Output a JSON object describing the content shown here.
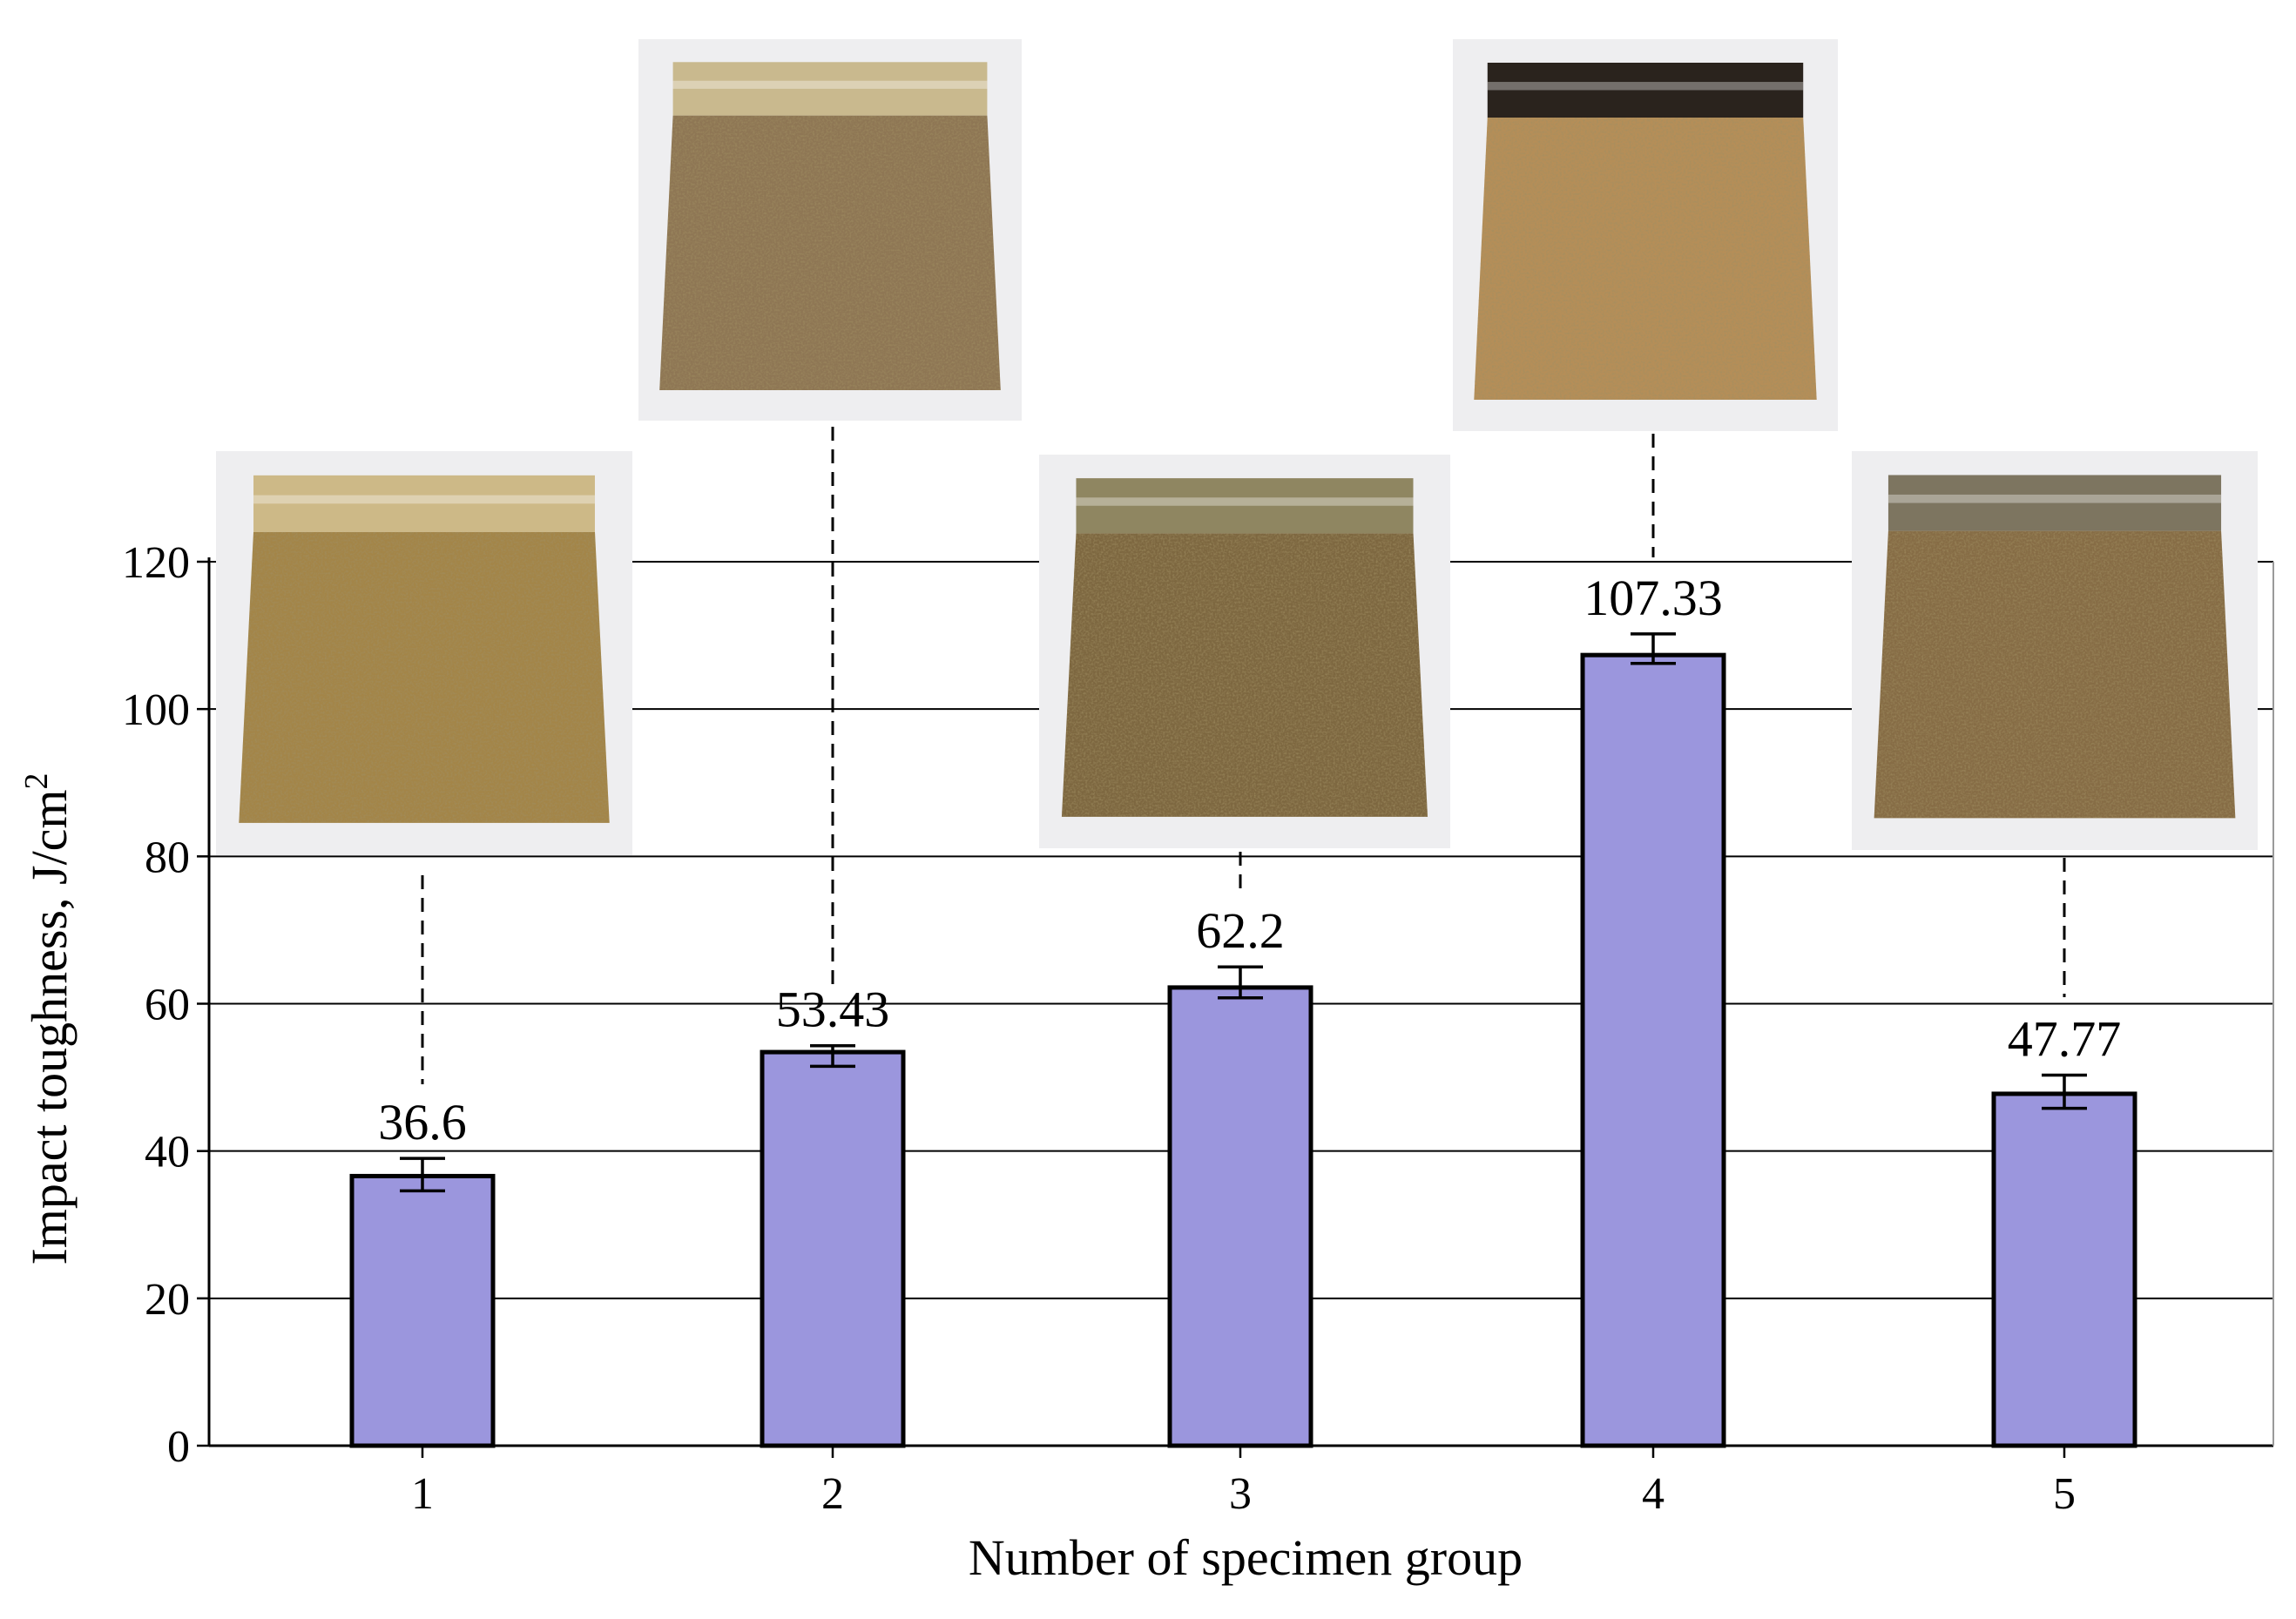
{
  "chart_data": {
    "type": "bar",
    "categories": [
      "1",
      "2",
      "3",
      "4",
      "5"
    ],
    "values": [
      36.6,
      53.43,
      62.2,
      107.33,
      47.77
    ],
    "error_low": [
      34.6,
      51.5,
      60.8,
      106.2,
      45.8
    ],
    "error_high": [
      39.0,
      54.3,
      65.0,
      110.2,
      50.3
    ],
    "data_labels": [
      "36.6",
      "53.43",
      "62.2",
      "107.33",
      "47.77"
    ],
    "yticks": [
      "0",
      "20",
      "40",
      "60",
      "80",
      "100",
      "120"
    ],
    "ylim": [
      0,
      120
    ],
    "xlabel": "Number of specimen group",
    "ylabel": "Impact toughness, J/cm",
    "ylabel_sup": "2",
    "bar_color": "#9b96dd",
    "grid": true
  }
}
